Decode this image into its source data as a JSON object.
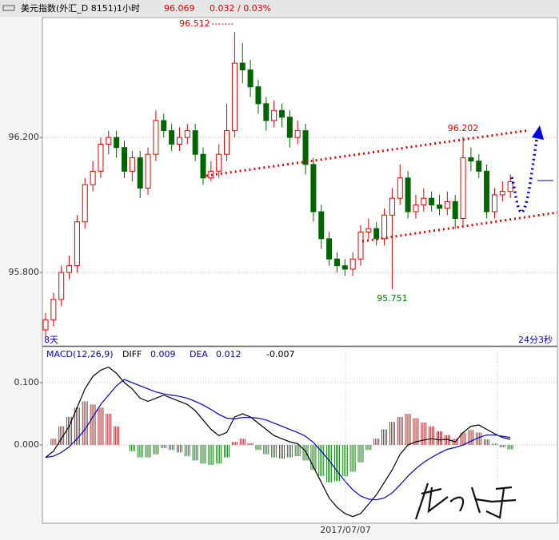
{
  "header": {
    "title": "美元指数(外汇_D 8151)1小时",
    "price": 96.069,
    "change": "0.032 / 0.03%"
  },
  "chart_data": [
    {
      "type": "candlestick",
      "up_color": "#e00000",
      "down_color": "#006400",
      "open": [
        95.63,
        95.66,
        95.72,
        95.8,
        95.82,
        95.95,
        96.06,
        96.1,
        96.18,
        96.2,
        96.17,
        96.1,
        96.14,
        96.05,
        96.15,
        96.25,
        96.22,
        96.18,
        96.2,
        96.22,
        96.15,
        96.08,
        96.1,
        96.15,
        96.22,
        96.42,
        96.4,
        96.35,
        96.3,
        96.25,
        96.28,
        96.26,
        96.2,
        96.22,
        96.12,
        95.98,
        95.9,
        95.84,
        95.82,
        95.81,
        95.84,
        95.92,
        95.93,
        95.9,
        95.97,
        96.02,
        96.08,
        95.98,
        96.0,
        96.02,
        96.0,
        95.99,
        96.01,
        95.96,
        96.14,
        96.13,
        96.1,
        95.98,
        96.03,
        96.04
      ],
      "high": [
        95.68,
        95.74,
        95.82,
        95.85,
        95.97,
        96.08,
        96.13,
        96.2,
        96.22,
        96.22,
        96.19,
        96.16,
        96.16,
        96.17,
        96.28,
        96.27,
        96.24,
        96.23,
        96.24,
        96.24,
        96.17,
        96.13,
        96.18,
        96.3,
        96.512,
        96.48,
        96.43,
        96.37,
        96.32,
        96.31,
        96.3,
        96.28,
        96.25,
        96.24,
        96.14,
        96.0,
        95.92,
        95.86,
        95.84,
        95.86,
        95.94,
        95.96,
        95.95,
        95.99,
        96.05,
        96.12,
        96.1,
        96.03,
        96.05,
        96.04,
        96.03,
        96.04,
        96.03,
        96.202,
        96.17,
        96.15,
        96.12,
        96.05,
        96.07,
        96.09
      ],
      "low": [
        95.61,
        95.64,
        95.7,
        95.78,
        95.8,
        95.93,
        96.04,
        96.08,
        96.15,
        96.14,
        96.08,
        96.07,
        96.02,
        96.03,
        96.13,
        96.2,
        96.16,
        96.16,
        96.18,
        96.13,
        96.06,
        96.07,
        96.08,
        96.13,
        96.2,
        96.36,
        96.32,
        96.27,
        96.22,
        96.23,
        96.23,
        96.17,
        96.18,
        96.09,
        95.95,
        95.87,
        95.82,
        95.8,
        95.79,
        95.79,
        95.82,
        95.9,
        95.88,
        95.88,
        95.751,
        96.0,
        95.96,
        95.96,
        95.98,
        95.98,
        95.97,
        95.97,
        95.93,
        95.94,
        96.1,
        96.08,
        95.96,
        95.96,
        96.01,
        96.02
      ],
      "close": [
        95.66,
        95.72,
        95.8,
        95.82,
        95.95,
        96.06,
        96.1,
        96.18,
        96.2,
        96.17,
        96.1,
        96.14,
        96.05,
        96.15,
        96.25,
        96.22,
        96.18,
        96.2,
        96.22,
        96.15,
        96.08,
        96.1,
        96.15,
        96.22,
        96.42,
        96.4,
        96.35,
        96.3,
        96.25,
        96.28,
        96.26,
        96.2,
        96.22,
        96.12,
        95.98,
        95.9,
        95.84,
        95.82,
        95.81,
        95.84,
        95.92,
        95.93,
        95.9,
        95.97,
        96.02,
        96.08,
        95.98,
        96.0,
        96.02,
        96.0,
        95.99,
        96.01,
        95.96,
        96.14,
        96.13,
        96.1,
        95.98,
        96.03,
        96.04,
        96.069
      ],
      "ylim": [
        95.585,
        96.555
      ],
      "yticks": [
        {
          "value": 95.8,
          "label": "95.800"
        },
        {
          "value": 96.2,
          "label": "96.200"
        }
      ],
      "grid": true,
      "annotations": [
        {
          "text": "96.512",
          "index": 24,
          "color": "#e00000"
        },
        {
          "text": "96.202",
          "index": 53,
          "color": "#e00000"
        },
        {
          "text": "95.751",
          "index": 44,
          "color": "#008000"
        }
      ],
      "corner_left": "8天",
      "corner_right": "24分3秒"
    },
    {
      "type": "macd",
      "title": "MACD(12,26,9)",
      "series": [
        {
          "name": "DIFF",
          "color": "#000000",
          "latest": 0.009,
          "values": [
            -0.02,
            -0.01,
            0.01,
            0.03,
            0.06,
            0.09,
            0.11,
            0.12,
            0.125,
            0.115,
            0.1,
            0.09,
            0.075,
            0.07,
            0.075,
            0.08,
            0.075,
            0.07,
            0.065,
            0.055,
            0.04,
            0.025,
            0.015,
            0.02,
            0.045,
            0.05,
            0.045,
            0.035,
            0.025,
            0.015,
            0.01,
            0.005,
            0.002,
            -0.01,
            -0.035,
            -0.06,
            -0.085,
            -0.1,
            -0.11,
            -0.115,
            -0.11,
            -0.095,
            -0.08,
            -0.06,
            -0.04,
            -0.015,
            0.0,
            0.005,
            0.008,
            0.01,
            0.008,
            0.009,
            0.005,
            0.02,
            0.03,
            0.032,
            0.025,
            0.018,
            0.012,
            0.009
          ]
        },
        {
          "name": "DEA",
          "color": "#0000cc",
          "latest": 0.012,
          "values": [
            -0.02,
            -0.018,
            -0.012,
            -0.003,
            0.01,
            0.025,
            0.045,
            0.065,
            0.08,
            0.095,
            0.105,
            0.1,
            0.095,
            0.09,
            0.085,
            0.082,
            0.08,
            0.078,
            0.075,
            0.07,
            0.064,
            0.057,
            0.049,
            0.043,
            0.042,
            0.044,
            0.044,
            0.043,
            0.04,
            0.035,
            0.03,
            0.025,
            0.02,
            0.014,
            0.004,
            -0.01,
            -0.025,
            -0.042,
            -0.058,
            -0.072,
            -0.082,
            -0.087,
            -0.088,
            -0.085,
            -0.077,
            -0.064,
            -0.05,
            -0.038,
            -0.028,
            -0.02,
            -0.013,
            -0.007,
            -0.004,
            0.0,
            0.006,
            0.012,
            0.016,
            0.016,
            0.014,
            0.012
          ]
        }
      ],
      "histogram": {
        "latest": -0.007,
        "up_color": "#b03030",
        "down_color": "#208020",
        "values": [
          0.0,
          0.01,
          0.03,
          0.045,
          0.06,
          0.07,
          0.065,
          0.06,
          0.05,
          0.03,
          0.0,
          -0.01,
          -0.02,
          -0.02,
          -0.015,
          -0.005,
          -0.008,
          -0.012,
          -0.018,
          -0.025,
          -0.03,
          -0.032,
          -0.03,
          -0.02,
          0.005,
          0.01,
          0.003,
          -0.008,
          -0.015,
          -0.02,
          -0.022,
          -0.02,
          -0.018,
          -0.025,
          -0.04,
          -0.05,
          -0.06,
          -0.058,
          -0.05,
          -0.043,
          -0.028,
          -0.008,
          0.01,
          0.025,
          0.037,
          0.045,
          0.05,
          0.043,
          0.036,
          0.03,
          0.022,
          0.016,
          0.01,
          0.02,
          0.024,
          0.02,
          0.009,
          0.002,
          -0.004,
          -0.007
        ]
      },
      "ylim": [
        -0.1256,
        0.1577
      ],
      "yticks": [
        {
          "value": 0.0,
          "label": "0.000"
        },
        {
          "value": 0.1,
          "label": "0.100"
        }
      ],
      "grid": true,
      "x_label": "2017/07/07"
    }
  ]
}
